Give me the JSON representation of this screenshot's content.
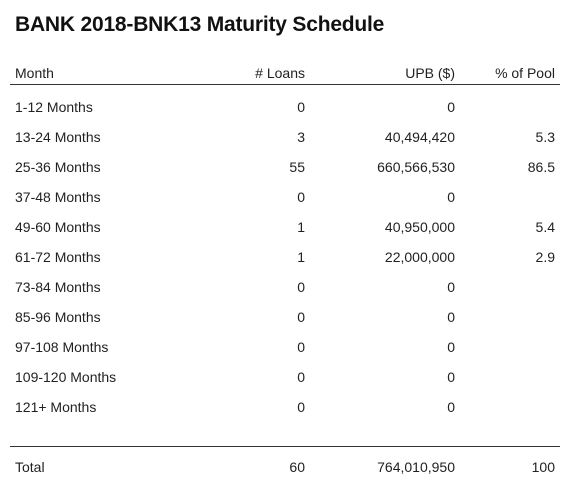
{
  "title": "BANK 2018-BNK13 Maturity Schedule",
  "columns": {
    "month": "Month",
    "loans": "# Loans",
    "upb": "UPB ($)",
    "pool": "% of Pool"
  },
  "rows": [
    {
      "month": "1-12 Months",
      "loans": "0",
      "upb": "0",
      "pool": ""
    },
    {
      "month": "13-24 Months",
      "loans": "3",
      "upb": "40,494,420",
      "pool": "5.3"
    },
    {
      "month": "25-36 Months",
      "loans": "55",
      "upb": "660,566,530",
      "pool": "86.5"
    },
    {
      "month": "37-48 Months",
      "loans": "0",
      "upb": "0",
      "pool": ""
    },
    {
      "month": "49-60 Months",
      "loans": "1",
      "upb": "40,950,000",
      "pool": "5.4"
    },
    {
      "month": "61-72 Months",
      "loans": "1",
      "upb": "22,000,000",
      "pool": "2.9"
    },
    {
      "month": "73-84 Months",
      "loans": "0",
      "upb": "0",
      "pool": ""
    },
    {
      "month": "85-96 Months",
      "loans": "0",
      "upb": "0",
      "pool": ""
    },
    {
      "month": "97-108 Months",
      "loans": "0",
      "upb": "0",
      "pool": ""
    },
    {
      "month": "109-120 Months",
      "loans": "0",
      "upb": "0",
      "pool": ""
    },
    {
      "month": "121+ Months",
      "loans": "0",
      "upb": "0",
      "pool": ""
    }
  ],
  "total": {
    "month": "Total",
    "loans": "60",
    "upb": "764,010,950",
    "pool": "100"
  }
}
